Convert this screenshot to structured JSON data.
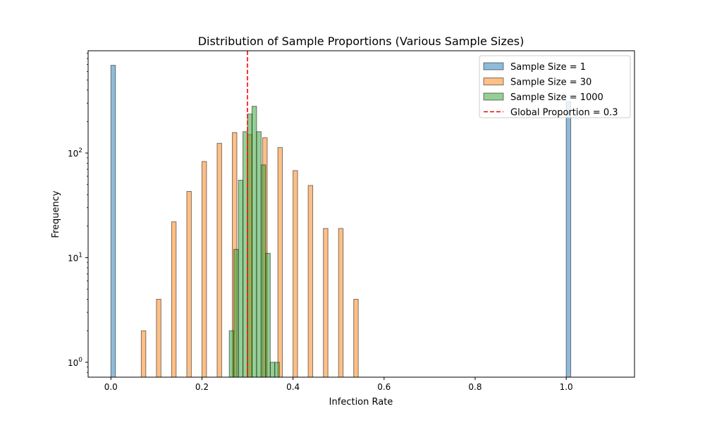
{
  "chart_data": {
    "type": "bar",
    "title": "Distribution of Sample Proportions (Various Sample Sizes)",
    "xlabel": "Infection Rate",
    "ylabel": "Frequency",
    "xlim": [
      -0.05,
      1.15
    ],
    "ylim": [
      0.72,
      950
    ],
    "yscale": "log",
    "grid": false,
    "legend_position": "top-right",
    "bin_width": 0.01,
    "x_ticks": [
      {
        "value": 0.0,
        "label": "0.0"
      },
      {
        "value": 0.2,
        "label": "0.2"
      },
      {
        "value": 0.4,
        "label": "0.4"
      },
      {
        "value": 0.6,
        "label": "0.6"
      },
      {
        "value": 0.8,
        "label": "0.8"
      },
      {
        "value": 1.0,
        "label": "1.0"
      }
    ],
    "y_ticks": [
      {
        "value": 1,
        "base": "10",
        "exp": "0"
      },
      {
        "value": 10,
        "base": "10",
        "exp": "1"
      },
      {
        "value": 100,
        "base": "10",
        "exp": "2"
      }
    ],
    "series": [
      {
        "name": "Sample Size = 1",
        "color": "#1f77b4",
        "bins": [
          {
            "x": 0.0,
            "count": 690
          },
          {
            "x": 1.0,
            "count": 310
          }
        ]
      },
      {
        "name": "Sample Size = 30",
        "color": "#ff7f0e",
        "bins": [
          {
            "x": 0.0667,
            "count": 2
          },
          {
            "x": 0.1,
            "count": 4
          },
          {
            "x": 0.1333,
            "count": 22
          },
          {
            "x": 0.1667,
            "count": 43
          },
          {
            "x": 0.2,
            "count": 83
          },
          {
            "x": 0.2333,
            "count": 124
          },
          {
            "x": 0.2667,
            "count": 157
          },
          {
            "x": 0.3,
            "count": 150
          },
          {
            "x": 0.3333,
            "count": 140
          },
          {
            "x": 0.3667,
            "count": 113
          },
          {
            "x": 0.4,
            "count": 68
          },
          {
            "x": 0.4333,
            "count": 49
          },
          {
            "x": 0.4667,
            "count": 19
          },
          {
            "x": 0.5,
            "count": 19
          },
          {
            "x": 0.5333,
            "count": 4
          }
        ]
      },
      {
        "name": "Sample Size = 1000",
        "color": "#2ca02c",
        "bins": [
          {
            "x": 0.26,
            "count": 2
          },
          {
            "x": 0.27,
            "count": 12
          },
          {
            "x": 0.28,
            "count": 55
          },
          {
            "x": 0.29,
            "count": 160
          },
          {
            "x": 0.3,
            "count": 236
          },
          {
            "x": 0.31,
            "count": 280
          },
          {
            "x": 0.32,
            "count": 160
          },
          {
            "x": 0.33,
            "count": 77
          },
          {
            "x": 0.34,
            "count": 11
          },
          {
            "x": 0.35,
            "count": 1
          },
          {
            "x": 0.36,
            "count": 1
          }
        ]
      }
    ],
    "reference_line": {
      "name": "Global Proportion = 0.3",
      "x": 0.3,
      "color": "#ff0000",
      "style": "dashed"
    }
  }
}
